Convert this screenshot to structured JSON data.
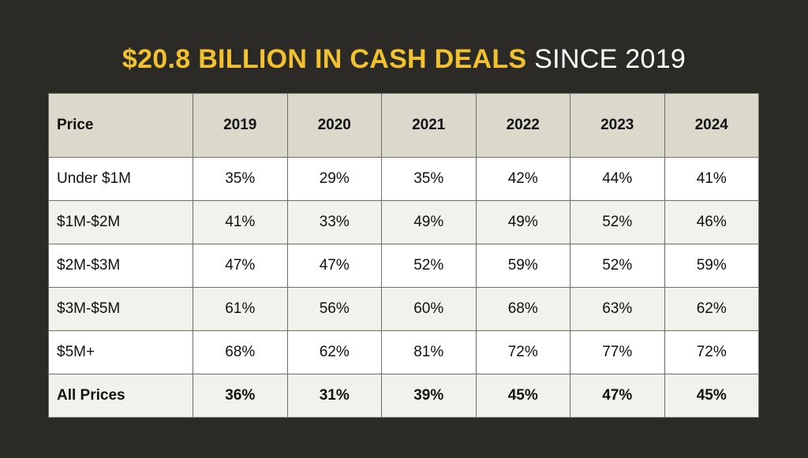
{
  "title": {
    "highlight": "$20.8 BILLION IN CASH DEALS",
    "rest": "SINCE 2019"
  },
  "colors": {
    "background": "#2b2a26",
    "title_highlight": "#f2c12e",
    "header_fill": "#dcd9cc"
  },
  "chart_data": {
    "type": "table",
    "columns": [
      "Price",
      "2019",
      "2020",
      "2021",
      "2022",
      "2023",
      "2024"
    ],
    "rows": [
      {
        "label": "Under $1M",
        "values": [
          "35%",
          "29%",
          "35%",
          "42%",
          "44%",
          "41%"
        ]
      },
      {
        "label": "$1M-$2M",
        "values": [
          "41%",
          "33%",
          "49%",
          "49%",
          "52%",
          "46%"
        ]
      },
      {
        "label": "$2M-$3M",
        "values": [
          "47%",
          "47%",
          "52%",
          "59%",
          "52%",
          "59%"
        ]
      },
      {
        "label": "$3M-$5M",
        "values": [
          "61%",
          "56%",
          "60%",
          "68%",
          "63%",
          "62%"
        ]
      },
      {
        "label": "$5M+",
        "values": [
          "68%",
          "62%",
          "81%",
          "72%",
          "77%",
          "72%"
        ]
      },
      {
        "label": "All Prices",
        "values": [
          "36%",
          "31%",
          "39%",
          "45%",
          "47%",
          "45%"
        ]
      }
    ]
  }
}
